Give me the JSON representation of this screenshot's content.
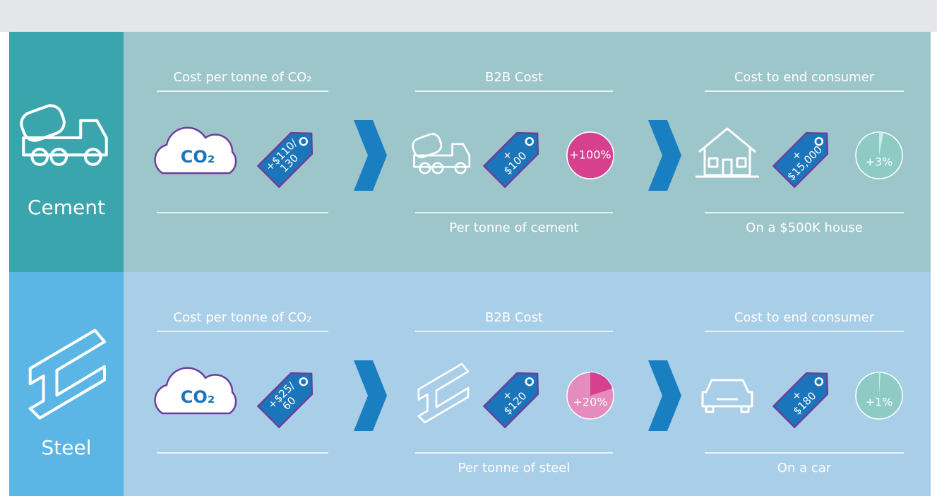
{
  "sections": [
    {
      "name": "Cement",
      "stages": [
        {
          "heading": "Cost per tonne of CO₂",
          "icon_label": "CO₂",
          "tag_lines": [
            "+$110/",
            "130"
          ]
        },
        {
          "heading": "B2B Cost",
          "tag_lines": [
            "+",
            "$100"
          ],
          "badge": {
            "value": 100,
            "label": "+100%"
          },
          "caption": "Per tonne of cement"
        },
        {
          "heading": "Cost to end consumer",
          "tag_lines": [
            "+",
            "$15,000"
          ],
          "badge": {
            "value": 3,
            "label": "+3%"
          },
          "caption": "On a $500K house"
        }
      ]
    },
    {
      "name": "Steel",
      "stages": [
        {
          "heading": "Cost per tonne of CO₂",
          "icon_label": "CO₂",
          "tag_lines": [
            "+$25/",
            "60"
          ]
        },
        {
          "heading": "B2B Cost",
          "tag_lines": [
            "+",
            "$120"
          ],
          "badge": {
            "value": 20,
            "label": "+20%"
          },
          "caption": "Per tonne of steel"
        },
        {
          "heading": "Cost to end consumer",
          "tag_lines": [
            "+",
            "$180"
          ],
          "badge": {
            "value": 1,
            "label": "+1%"
          },
          "caption": "On a car"
        }
      ]
    }
  ]
}
